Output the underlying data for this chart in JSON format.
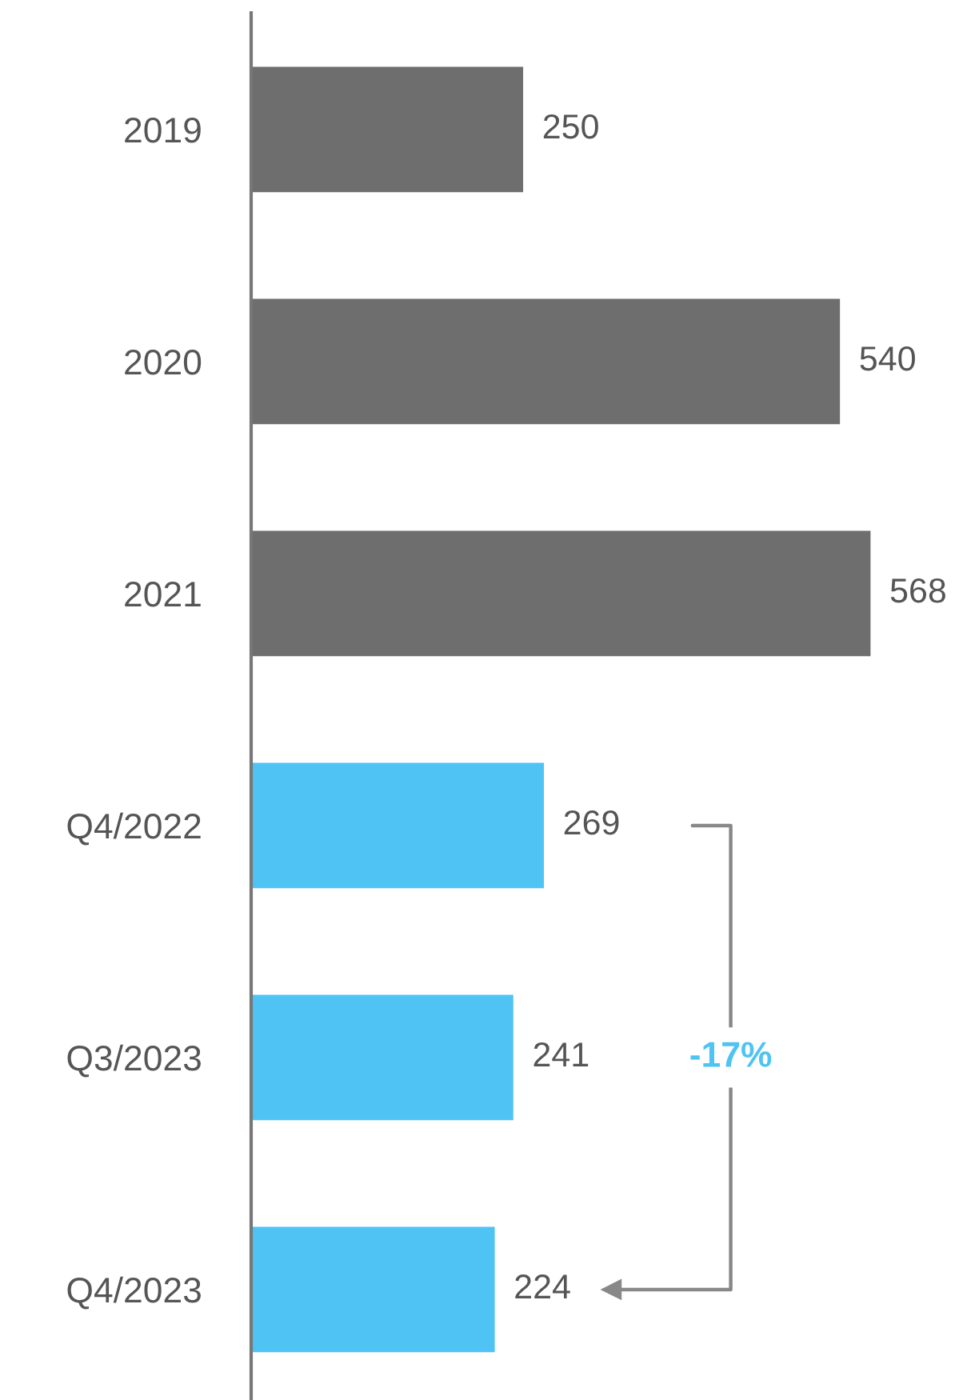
{
  "chart_data": {
    "type": "bar",
    "orientation": "horizontal",
    "categories": [
      "2019",
      "2020",
      "2021",
      "Q4/2022",
      "Q3/2023",
      "Q4/2023"
    ],
    "values": [
      250,
      540,
      568,
      269,
      241,
      224
    ],
    "colors": [
      "#6e6e6e",
      "#6e6e6e",
      "#6e6e6e",
      "#4fc3f3",
      "#4fc3f3",
      "#4fc3f3"
    ],
    "data_labels": true,
    "tick_labels": "y",
    "grid": false,
    "legend": false,
    "annotations": [
      "-17%"
    ]
  }
}
